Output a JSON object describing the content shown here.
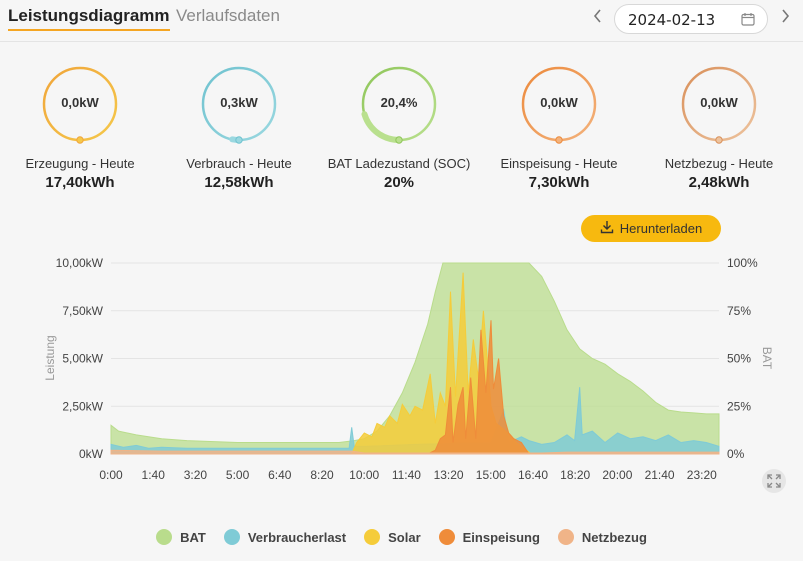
{
  "header": {
    "tabs": [
      {
        "label": "Leistungsdiagramm",
        "active": true
      },
      {
        "label": "Verlaufsdaten",
        "active": false
      }
    ],
    "date": "2024-02-13",
    "prev_icon": "chevron-left-icon",
    "next_icon": "chevron-right-icon",
    "calendar_icon": "calendar-icon"
  },
  "gauges": [
    {
      "value": "0,0kW",
      "label": "Erzeugung - Heute",
      "total": "17,40kWh",
      "color": "#f0a53a",
      "color2": "#f5c84a",
      "fill": 0
    },
    {
      "value": "0,3kW",
      "label": "Verbrauch - Heute",
      "total": "12,58kWh",
      "color": "#6fc2cf",
      "color2": "#9ad8e0",
      "fill": 0.03
    },
    {
      "value": "20,4%",
      "label": "BAT Ladezustand (SOC)",
      "total": "20%",
      "color": "#8fc65a",
      "color2": "#b9e08e",
      "fill": 0.204
    },
    {
      "value": "0,0kW",
      "label": "Einspeisung - Heute",
      "total": "7,30kWh",
      "color": "#ec8a3c",
      "color2": "#f3b27c",
      "fill": 0
    },
    {
      "value": "0,0kW",
      "label": "Netzbezug - Heute",
      "total": "2,48kWh",
      "color": "#d9905a",
      "color2": "#edc39e",
      "fill": 0
    }
  ],
  "download": {
    "label": "Herunterladen",
    "icon": "download-icon"
  },
  "expand_icon": "expand-icon",
  "chart_data": {
    "type": "area",
    "ylabel": "Leistung",
    "y2label": "BAT",
    "ylim": [
      0,
      10
    ],
    "y2lim": [
      0,
      100
    ],
    "y_ticks": [
      "0kW",
      "2,50kW",
      "5,00kW",
      "7,50kW",
      "10,00kW"
    ],
    "y2_ticks": [
      "0%",
      "25%",
      "50%",
      "75%",
      "100%"
    ],
    "x_ticks": [
      "0:00",
      "1:40",
      "3:20",
      "5:00",
      "6:40",
      "8:20",
      "10:00",
      "11:40",
      "13:20",
      "15:00",
      "16:40",
      "18:20",
      "20:00",
      "21:40",
      "23:20"
    ],
    "x_range_hours": [
      0,
      24
    ],
    "grid": true,
    "legend_position": "bottom",
    "series": [
      {
        "name": "BAT",
        "axis": "right",
        "color": "#b9dc8c",
        "points": [
          [
            0,
            15
          ],
          [
            0.3,
            12
          ],
          [
            1,
            10
          ],
          [
            2,
            8
          ],
          [
            3,
            7
          ],
          [
            5,
            6
          ],
          [
            7,
            6
          ],
          [
            9,
            6
          ],
          [
            9.6,
            7
          ],
          [
            10,
            8
          ],
          [
            10.5,
            12
          ],
          [
            11,
            20
          ],
          [
            11.5,
            32
          ],
          [
            12,
            48
          ],
          [
            12.5,
            68
          ],
          [
            12.8,
            85
          ],
          [
            13.1,
            100
          ],
          [
            16.5,
            100
          ],
          [
            17,
            93
          ],
          [
            17.5,
            80
          ],
          [
            18,
            65
          ],
          [
            18.5,
            55
          ],
          [
            19,
            50
          ],
          [
            19.5,
            47
          ],
          [
            20,
            42
          ],
          [
            20.5,
            38
          ],
          [
            21,
            33
          ],
          [
            21.5,
            27
          ],
          [
            22,
            23
          ],
          [
            22.5,
            22
          ],
          [
            23,
            21.5
          ],
          [
            23.5,
            21
          ],
          [
            24,
            21
          ]
        ]
      },
      {
        "name": "Verbraucherlast",
        "axis": "left",
        "color": "#7fcbd6",
        "points": [
          [
            0,
            0.5
          ],
          [
            0.5,
            0.35
          ],
          [
            1,
            0.45
          ],
          [
            1.5,
            0.3
          ],
          [
            2,
            0.35
          ],
          [
            3,
            0.3
          ],
          [
            4,
            0.3
          ],
          [
            5,
            0.3
          ],
          [
            6,
            0.3
          ],
          [
            7,
            0.3
          ],
          [
            8,
            0.3
          ],
          [
            9,
            0.3
          ],
          [
            9.4,
            0.3
          ],
          [
            9.5,
            1.4
          ],
          [
            9.6,
            0.4
          ],
          [
            10,
            0.4
          ],
          [
            12,
            0.5
          ],
          [
            15,
            0.6
          ],
          [
            15.5,
            2.3
          ],
          [
            15.7,
            0.6
          ],
          [
            16.2,
            0.9
          ],
          [
            16.5,
            0.7
          ],
          [
            17,
            0.5
          ],
          [
            17.5,
            0.6
          ],
          [
            18,
            1.0
          ],
          [
            18.3,
            0.7
          ],
          [
            18.5,
            3.5
          ],
          [
            18.6,
            1.0
          ],
          [
            19,
            1.2
          ],
          [
            19.5,
            0.6
          ],
          [
            20,
            1.1
          ],
          [
            20.5,
            0.8
          ],
          [
            21,
            0.9
          ],
          [
            21.5,
            0.7
          ],
          [
            22,
            1.0
          ],
          [
            22.5,
            0.6
          ],
          [
            23,
            0.7
          ],
          [
            23.5,
            0.6
          ],
          [
            24,
            0.4
          ]
        ]
      },
      {
        "name": "Solar",
        "axis": "left",
        "color": "#f5cc3a",
        "points": [
          [
            9.5,
            0
          ],
          [
            9.7,
            0.6
          ],
          [
            10,
            1.1
          ],
          [
            10.3,
            0.9
          ],
          [
            10.5,
            1.6
          ],
          [
            10.8,
            1.4
          ],
          [
            11,
            2.0
          ],
          [
            11.3,
            1.6
          ],
          [
            11.5,
            2.6
          ],
          [
            11.8,
            2.0
          ],
          [
            12,
            2.5
          ],
          [
            12.3,
            2.3
          ],
          [
            12.6,
            4.2
          ],
          [
            12.8,
            1.6
          ],
          [
            13,
            3.2
          ],
          [
            13.2,
            2.5
          ],
          [
            13.4,
            8.5
          ],
          [
            13.6,
            3.0
          ],
          [
            13.9,
            9.5
          ],
          [
            14.1,
            3.2
          ],
          [
            14.3,
            6.0
          ],
          [
            14.5,
            4.0
          ],
          [
            14.7,
            7.5
          ],
          [
            15,
            2.5
          ],
          [
            15.2,
            1.6
          ],
          [
            15.5,
            1.3
          ],
          [
            15.8,
            0.9
          ],
          [
            16,
            0.6
          ],
          [
            16.3,
            0.3
          ],
          [
            16.6,
            0
          ]
        ]
      },
      {
        "name": "Einspeisung",
        "axis": "left",
        "color": "#ef8c3a",
        "points": [
          [
            12.5,
            0
          ],
          [
            12.8,
            0.2
          ],
          [
            13,
            0.8
          ],
          [
            13.2,
            1.0
          ],
          [
            13.4,
            3.5
          ],
          [
            13.5,
            0.6
          ],
          [
            13.7,
            2.6
          ],
          [
            13.9,
            3.5
          ],
          [
            14,
            0.8
          ],
          [
            14.2,
            4.0
          ],
          [
            14.4,
            0.8
          ],
          [
            14.6,
            6.5
          ],
          [
            14.8,
            3.2
          ],
          [
            15,
            7.0
          ],
          [
            15.1,
            3.4
          ],
          [
            15.3,
            5.0
          ],
          [
            15.5,
            2.0
          ],
          [
            15.7,
            1.1
          ],
          [
            15.9,
            0.8
          ],
          [
            16.2,
            0.6
          ],
          [
            16.5,
            0
          ]
        ]
      },
      {
        "name": "Netzbezug",
        "axis": "left",
        "color": "#f0b488",
        "points": [
          [
            0,
            0.2
          ],
          [
            2,
            0.15
          ],
          [
            4,
            0.15
          ],
          [
            6,
            0.15
          ],
          [
            8,
            0.15
          ],
          [
            9.5,
            0.15
          ],
          [
            10,
            0.05
          ],
          [
            17,
            0.05
          ],
          [
            18,
            0.1
          ],
          [
            20,
            0.1
          ],
          [
            22,
            0.1
          ],
          [
            24,
            0.1
          ]
        ]
      }
    ]
  }
}
